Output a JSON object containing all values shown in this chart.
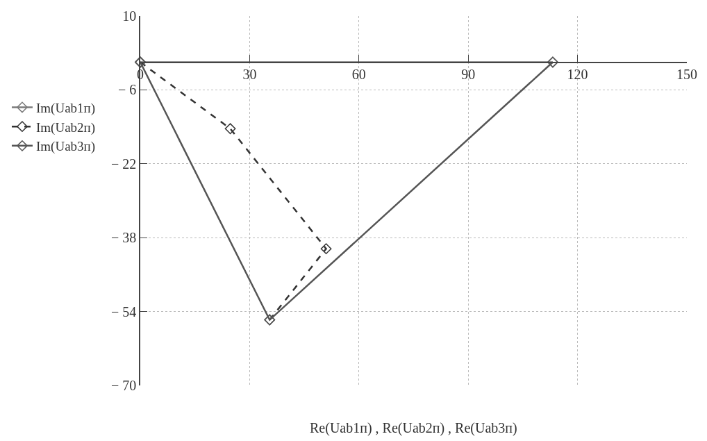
{
  "chart_data": {
    "type": "line",
    "xlabel": "Re(Uab1п) , Re(Uab2п) , Re(Uab3п)",
    "xlim": [
      0,
      150
    ],
    "xticks": [
      0,
      30,
      60,
      90,
      120,
      150
    ],
    "ylim": [
      -70,
      10
    ],
    "yticks": [
      10,
      -6,
      -22,
      -38,
      -54,
      -70
    ],
    "grid": true,
    "legend": "left",
    "marker": "diamond",
    "series": [
      {
        "name": "Im(Uab1п)",
        "color": "#7a7a7a",
        "line_style": "solid",
        "x": [
          0,
          113.2
        ],
        "values": [
          0,
          0
        ]
      },
      {
        "name": "Im(Uab2п)",
        "color": "#333333",
        "line_style": "dashed",
        "x": [
          0,
          24.7,
          51,
          35.5
        ],
        "values": [
          0,
          -14.4,
          -40.4,
          -55.8
        ]
      },
      {
        "name": "Im(Uab3п)",
        "color": "#555555",
        "line_style": "solid",
        "x": [
          0,
          35.5,
          113.2
        ],
        "values": [
          0,
          -55.8,
          0
        ]
      }
    ]
  }
}
